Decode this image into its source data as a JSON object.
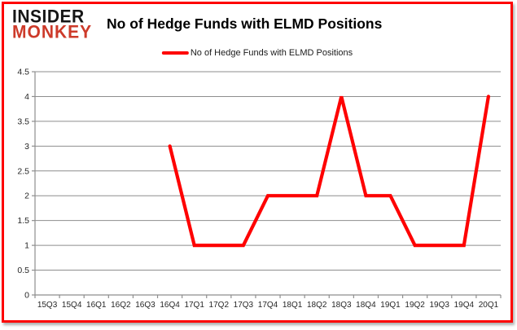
{
  "logo": {
    "line1": "INSIDER",
    "line2": "MONKEY"
  },
  "title": "No of Hedge Funds with ELMD Positions",
  "legend": {
    "label": "No of Hedge Funds with ELMD Positions"
  },
  "colors": {
    "series_line": "#fe0000",
    "frame_border": "#fe0000",
    "gridline": "#8e8e8e",
    "axis": "#8e8e8e",
    "tick_text": "#262626",
    "logo_insider": "#161616",
    "logo_monkey": "#cd3a2a",
    "title_text": "#000000"
  },
  "chart_data": {
    "type": "line",
    "title": "No of Hedge Funds with ELMD Positions",
    "categories": [
      "15Q3",
      "15Q4",
      "16Q1",
      "16Q2",
      "16Q3",
      "16Q4",
      "17Q1",
      "17Q2",
      "17Q3",
      "17Q4",
      "18Q1",
      "18Q2",
      "18Q3",
      "18Q4",
      "19Q1",
      "19Q2",
      "19Q3",
      "19Q4",
      "20Q1"
    ],
    "series": [
      {
        "name": "No of Hedge Funds with ELMD Positions",
        "color": "#fe0000",
        "values": [
          null,
          null,
          null,
          null,
          null,
          3,
          1,
          1,
          1,
          2,
          2,
          2,
          4,
          2,
          2,
          1,
          1,
          1,
          4
        ]
      }
    ],
    "xlabel": "",
    "ylabel": "",
    "ylim": [
      0,
      4.5
    ],
    "ytick_step": 0.5,
    "ytick_labels": [
      "0",
      "0.5",
      "1",
      "1.5",
      "2",
      "2.5",
      "3",
      "3.5",
      "4",
      "4.5"
    ],
    "grid": true,
    "legend_position": "top-center"
  }
}
